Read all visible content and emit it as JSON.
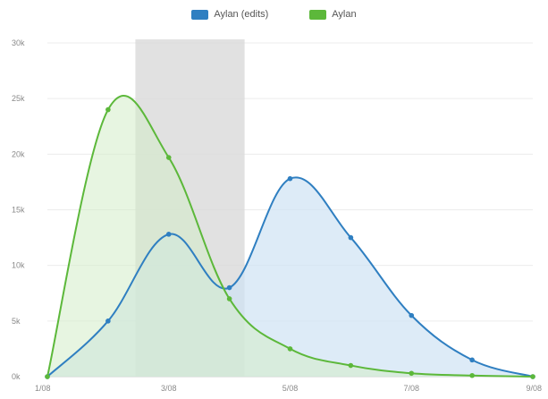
{
  "chart_data": {
    "type": "area",
    "smooth": true,
    "legend_position": "top-center",
    "grid": true,
    "x": [
      "1/08",
      "2/08",
      "3/08",
      "4/08",
      "5/08",
      "6/08",
      "7/08",
      "8/08",
      "9/08"
    ],
    "x_tick_labels": [
      "1/08",
      "3/08",
      "5/08",
      "7/08",
      "9/08"
    ],
    "y_tick_labels": [
      "0k",
      "5k",
      "10k",
      "15k",
      "20k",
      "25k",
      "30k"
    ],
    "ylim": [
      0,
      30000
    ],
    "highlight_band": {
      "from": 1.45,
      "to": 3.25,
      "color": "#d9d9d9"
    },
    "series": [
      {
        "name": "Aylan (edits)",
        "color": "#2f7fc1",
        "fill": "#cfe3f4",
        "values": [
          0,
          5000,
          12800,
          8000,
          17800,
          12500,
          5500,
          1500,
          0
        ]
      },
      {
        "name": "Aylan",
        "color": "#5cb83a",
        "fill": "#d3ecc8",
        "values": [
          0,
          24000,
          19700,
          7000,
          2500,
          1000,
          300,
          100,
          0
        ]
      }
    ]
  }
}
